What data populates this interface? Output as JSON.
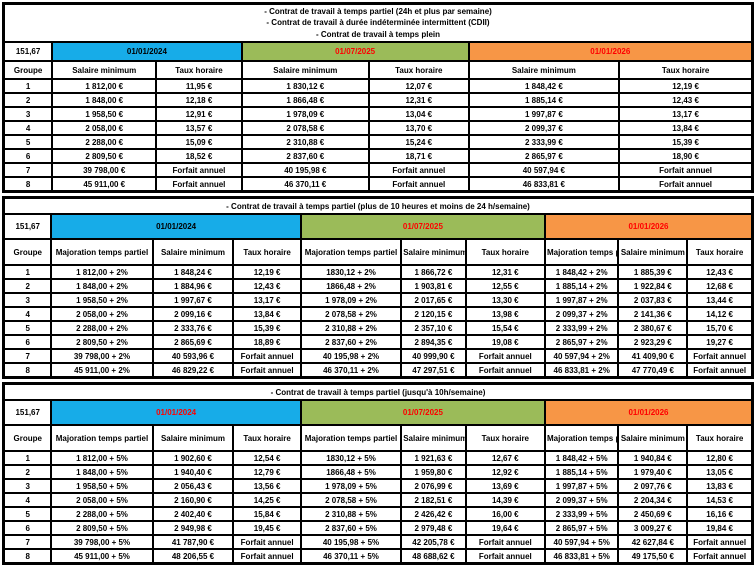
{
  "colors": {
    "yellow_band": "#FFFF00",
    "blue_2024": "#17ACE8",
    "green_2025": "#9BBB59",
    "orange_2026": "#F79646",
    "title_text": "#9C2020",
    "date_red": "#FF0000",
    "date_black": "#000000"
  },
  "monthly_hours": "151,67",
  "tables": [
    {
      "name": "temps-plein",
      "title_lines": [
        "- Contrat de travail à temps partiel (24h et plus par semaine)",
        "- Contrat de travail à durée indéterminée intermittent (CDII)",
        "- Contrat de travail à temps plein"
      ],
      "corner_label": "151,67",
      "group_header": "Groupe",
      "periods": [
        {
          "label": "01/01/2024",
          "bg": "#17ACE8",
          "label_color": "#000000",
          "columns": [
            "Salaire minimum",
            "Taux horaire"
          ]
        },
        {
          "label": "01/07/2025",
          "bg": "#9BBB59",
          "label_color": "#FF0000",
          "columns": [
            "Salaire minimum",
            "Taux horaire"
          ]
        },
        {
          "label": "01/01/2026",
          "bg": "#F79646",
          "label_color": "#FF0000",
          "columns": [
            "Salaire minimum",
            "Taux horaire"
          ]
        }
      ],
      "rows": [
        {
          "groupe": "1",
          "values": [
            "1 812,00 €",
            "11,95 €",
            "1 830,12 €",
            "12,07 €",
            "1 848,42 €",
            "12,19 €"
          ]
        },
        {
          "groupe": "2",
          "values": [
            "1 848,00 €",
            "12,18 €",
            "1 866,48 €",
            "12,31 €",
            "1 885,14 €",
            "12,43 €"
          ]
        },
        {
          "groupe": "3",
          "values": [
            "1 958,50 €",
            "12,91 €",
            "1 978,09 €",
            "13,04 €",
            "1 997,87 €",
            "13,17 €"
          ]
        },
        {
          "groupe": "4",
          "values": [
            "2 058,00 €",
            "13,57 €",
            "2 078,58 €",
            "13,70 €",
            "2 099,37 €",
            "13,84 €"
          ]
        },
        {
          "groupe": "5",
          "values": [
            "2 288,00 €",
            "15,09 €",
            "2 310,88 €",
            "15,24 €",
            "2 333,99 €",
            "15,39 €"
          ]
        },
        {
          "groupe": "6",
          "values": [
            "2 809,50 €",
            "18,52 €",
            "2 837,60 €",
            "18,71 €",
            "2 865,97 €",
            "18,90 €"
          ]
        },
        {
          "groupe": "7",
          "values": [
            "39 798,00 €",
            "Forfait annuel",
            "40 195,98 €",
            "Forfait annuel",
            "40 597,94 €",
            "Forfait annuel"
          ]
        },
        {
          "groupe": "8",
          "values": [
            "45 911,00 €",
            "Forfait annuel",
            "46 370,11 €",
            "Forfait annuel",
            "46 833,81 €",
            "Forfait annuel"
          ]
        }
      ]
    },
    {
      "name": "temps-partiel-10-24h",
      "title_lines": [
        "- Contrat de travail à temps partiel (plus de 10 heures et moins de 24 h/semaine)"
      ],
      "corner_label": "151,67",
      "group_header": "Groupe",
      "periods": [
        {
          "label": "01/01/2024",
          "bg": "#17ACE8",
          "label_color": "#000000",
          "columns": [
            "Majoration temps partiel",
            "Salaire minimum",
            "Taux horaire"
          ]
        },
        {
          "label": "01/07/2025",
          "bg": "#9BBB59",
          "label_color": "#FF0000",
          "columns": [
            "Majoration temps partiel",
            "Salaire minimum",
            "Taux horaire"
          ]
        },
        {
          "label": "01/01/2026",
          "bg": "#F79646",
          "label_color": "#FF0000",
          "columns": [
            "Majoration temps partiel",
            "Salaire minimum",
            "Taux horaire"
          ]
        }
      ],
      "rows": [
        {
          "groupe": "1",
          "values": [
            "1 812,00 + 2%",
            "1 848,24 €",
            "12,19 €",
            "1830,12 + 2%",
            "1 866,72 €",
            "12,31 €",
            "1 848,42 + 2%",
            "1 885,39 €",
            "12,43 €"
          ]
        },
        {
          "groupe": "2",
          "values": [
            "1 848,00 + 2%",
            "1 884,96 €",
            "12,43 €",
            "1866,48 + 2%",
            "1 903,81 €",
            "12,55 €",
            "1 885,14 + 2%",
            "1 922,84 €",
            "12,68 €"
          ]
        },
        {
          "groupe": "3",
          "values": [
            "1 958,50 + 2%",
            "1 997,67 €",
            "13,17 €",
            "1 978,09 + 2%",
            "2 017,65 €",
            "13,30 €",
            "1 997,87 + 2%",
            "2 037,83 €",
            "13,44 €"
          ]
        },
        {
          "groupe": "4",
          "values": [
            "2 058,00 + 2%",
            "2 099,16 €",
            "13,84 €",
            "2 078,58 + 2%",
            "2 120,15 €",
            "13,98 €",
            "2 099,37 + 2%",
            "2 141,36 €",
            "14,12 €"
          ]
        },
        {
          "groupe": "5",
          "values": [
            "2 288,00 + 2%",
            "2 333,76 €",
            "15,39 €",
            "2 310,88 + 2%",
            "2 357,10 €",
            "15,54 €",
            "2 333,99 + 2%",
            "2 380,67 €",
            "15,70 €"
          ]
        },
        {
          "groupe": "6",
          "values": [
            "2 809,50 + 2%",
            "2 865,69 €",
            "18,89 €",
            "2 837,60 + 2%",
            "2 894,35 €",
            "19,08 €",
            "2 865,97 + 2%",
            "2 923,29 €",
            "19,27 €"
          ]
        },
        {
          "groupe": "7",
          "values": [
            "39 798,00 + 2%",
            "40 593,96 €",
            "Forfait annuel",
            "40 195,98 + 2%",
            "40 999,90 €",
            "Forfait annuel",
            "40 597,94 + 2%",
            "41 409,90 €",
            "Forfait annuel"
          ]
        },
        {
          "groupe": "8",
          "values": [
            "45 911,00 + 2%",
            "46 829,22 €",
            "Forfait annuel",
            "46 370,11 + 2%",
            "47 297,51 €",
            "Forfait annuel",
            "46 833,81 + 2%",
            "47 770,49 €",
            "Forfait annuel"
          ]
        }
      ]
    },
    {
      "name": "temps-partiel-jusqua-10h",
      "title_lines": [
        "- Contrat de travail à temps partiel (jusqu'à 10h/semaine)"
      ],
      "corner_label": "151,67",
      "group_header": "Groupe",
      "periods": [
        {
          "label": "01/01/2024",
          "bg": "#17ACE8",
          "label_color": "#FF0000",
          "columns": [
            "Majoration temps partiel",
            "Salaire minimum",
            "Taux horaire"
          ]
        },
        {
          "label": "01/07/2025",
          "bg": "#9BBB59",
          "label_color": "#FF0000",
          "columns": [
            "Majoration temps partiel",
            "Salaire minimum",
            "Taux horaire"
          ]
        },
        {
          "label": "01/01/2026",
          "bg": "#F79646",
          "label_color": "#FF0000",
          "columns": [
            "Majoration temps partiel",
            "Salaire minimum",
            "Taux horaire"
          ]
        }
      ],
      "rows": [
        {
          "groupe": "1",
          "values": [
            "1 812,00 + 5%",
            "1 902,60 €",
            "12,54 €",
            "1830,12 + 5%",
            "1 921,63 €",
            "12,67 €",
            "1 848,42 + 5%",
            "1 940,84 €",
            "12,80 €"
          ]
        },
        {
          "groupe": "2",
          "values": [
            "1 848,00 + 5%",
            "1 940,40 €",
            "12,79 €",
            "1866,48 + 5%",
            "1 959,80 €",
            "12,92 €",
            "1 885,14 + 5%",
            "1 979,40 €",
            "13,05 €"
          ]
        },
        {
          "groupe": "3",
          "values": [
            "1 958,50 + 5%",
            "2 056,43 €",
            "13,56 €",
            "1 978,09 + 5%",
            "2 076,99 €",
            "13,69 €",
            "1 997,87 + 5%",
            "2 097,76 €",
            "13,83 €"
          ]
        },
        {
          "groupe": "4",
          "values": [
            "2 058,00 + 5%",
            "2 160,90 €",
            "14,25 €",
            "2 078,58 + 5%",
            "2 182,51 €",
            "14,39 €",
            "2 099,37 + 5%",
            "2 204,34 €",
            "14,53 €"
          ]
        },
        {
          "groupe": "5",
          "values": [
            "2 288,00 + 5%",
            "2 402,40 €",
            "15,84 €",
            "2 310,88 + 5%",
            "2 426,42 €",
            "16,00 €",
            "2 333,99 + 5%",
            "2 450,69 €",
            "16,16 €"
          ]
        },
        {
          "groupe": "6",
          "values": [
            "2 809,50 + 5%",
            "2 949,98 €",
            "19,45 €",
            "2 837,60 + 5%",
            "2 979,48 €",
            "19,64 €",
            "2 865,97 + 5%",
            "3 009,27 €",
            "19,84 €"
          ]
        },
        {
          "groupe": "7",
          "values": [
            "39 798,00 + 5%",
            "41 787,90 €",
            "Forfait annuel",
            "40 195,98 + 5%",
            "42 205,78 €",
            "Forfait annuel",
            "40 597,94 + 5%",
            "42 627,84 €",
            "Forfait annuel"
          ]
        },
        {
          "groupe": "8",
          "values": [
            "45 911,00 + 5%",
            "48 206,55 €",
            "Forfait annuel",
            "46 370,11 + 5%",
            "48 688,62 €",
            "Forfait annuel",
            "46 833,81 + 5%",
            "49 175,50 €",
            "Forfait annuel"
          ]
        }
      ]
    }
  ]
}
